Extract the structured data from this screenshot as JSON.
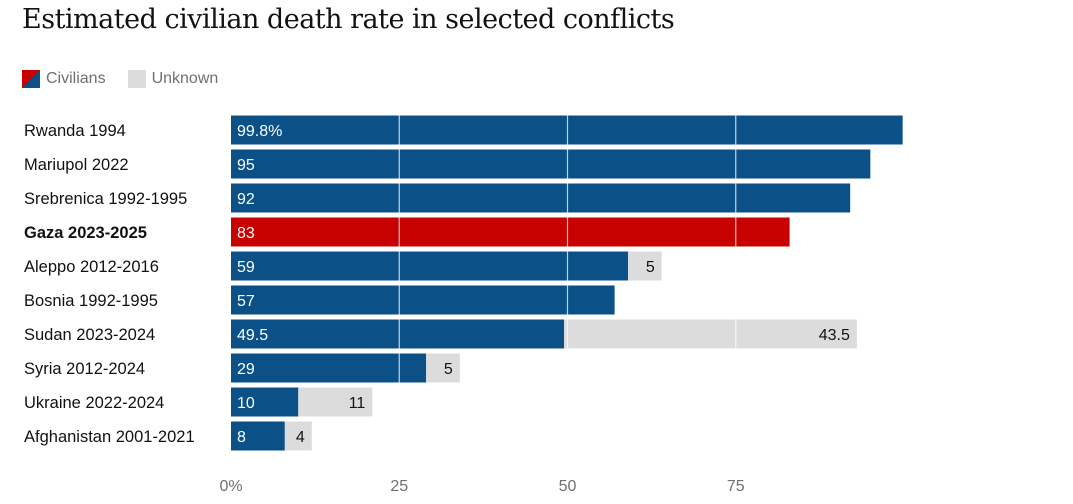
{
  "chart_data": {
    "type": "bar",
    "orientation": "horizontal",
    "stacked": true,
    "title": "Estimated civilian death rate in selected conflicts",
    "legend": [
      {
        "name": "Civilians",
        "color": "#0b5188",
        "highlight_color": "#c70000"
      },
      {
        "name": "Unknown",
        "color": "#dcdcdc"
      }
    ],
    "categories": [
      "Rwanda 1994",
      "Mariupol 2022",
      "Srebrenica 1992-1995",
      "Gaza 2023-2025",
      "Aleppo 2012-2016",
      "Bosnia 1992-1995",
      "Sudan 2023-2024",
      "Syria 2012-2024",
      "Ukraine 2022-2024",
      "Afghanistan 2001-2021"
    ],
    "highlight": "Gaza 2023-2025",
    "series": [
      {
        "name": "Civilians",
        "values": [
          99.8,
          95,
          92,
          83,
          59,
          57,
          49.5,
          29,
          10,
          8
        ],
        "labels": [
          "99.8%",
          "95",
          "92",
          "83",
          "59",
          "57",
          "49.5",
          "29",
          "10",
          "8"
        ]
      },
      {
        "name": "Unknown",
        "values": [
          0,
          0,
          0,
          0,
          5,
          0,
          43.5,
          5,
          11,
          4
        ],
        "labels": [
          "",
          "",
          "",
          "",
          "5",
          "",
          "43.5",
          "5",
          "11",
          "4"
        ]
      }
    ],
    "xlim": [
      0,
      100
    ],
    "xticks": [
      0,
      25,
      50,
      75
    ],
    "xtick_labels": [
      "0%",
      "25",
      "50",
      "75"
    ],
    "xlabel": "",
    "ylabel": ""
  }
}
